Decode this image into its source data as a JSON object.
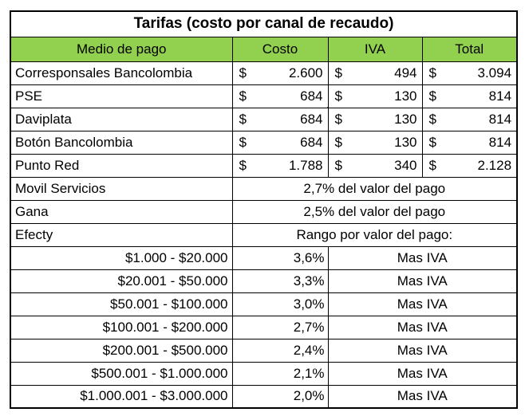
{
  "title": "Tarifas (costo por canal de recaudo)",
  "currency_symbol": "$",
  "columns": [
    "Medio de pago",
    "Costo",
    "IVA",
    "Total"
  ],
  "currency_rows": [
    {
      "medio": "Corresponsales Bancolombia",
      "costo": "2.600",
      "iva": "494",
      "total": "3.094"
    },
    {
      "medio": "PSE",
      "costo": "684",
      "iva": "130",
      "total": "814",
      "selected_column": "costo"
    },
    {
      "medio": "Daviplata",
      "costo": "684",
      "iva": "130",
      "total": "814"
    },
    {
      "medio": "Botón Bancolombia",
      "costo": "684",
      "iva": "130",
      "total": "814"
    },
    {
      "medio": "Punto Red",
      "costo": "1.788",
      "iva": "340",
      "total": "2.128"
    }
  ],
  "merged_rows": [
    {
      "medio": "Movil Servicios",
      "value": "2,7% del valor del pago"
    },
    {
      "medio": "Gana",
      "value": "2,5% del valor del pago"
    },
    {
      "medio": "Efecty",
      "value": "Rango por valor del pago:"
    }
  ],
  "range_rows": [
    {
      "range": "$1.000 - $20.000",
      "pct": "3,6%",
      "note": "Mas IVA"
    },
    {
      "range": "$20.001 - $50.000",
      "pct": "3,3%",
      "note": "Mas IVA"
    },
    {
      "range": "$50.001 - $100.000",
      "pct": "3,0%",
      "note": "Mas IVA"
    },
    {
      "range": "$100.001 - $200.000",
      "pct": "2,7%",
      "note": "Mas IVA"
    },
    {
      "range": "$200.001 - $500.000",
      "pct": "2,4%",
      "note": "Mas IVA"
    },
    {
      "range": "$500.001 - $1.000.000",
      "pct": "2,1%",
      "note": "Mas IVA"
    },
    {
      "range": "$1.000.001 - $3.000.000",
      "pct": "2,0%",
      "note": "Mas IVA"
    }
  ],
  "colors": {
    "header_green": "#92D050",
    "selection_green": "#217346",
    "grid_black": "#000000",
    "background": "#FFFFFF"
  },
  "selection": {
    "row": "PSE",
    "column": "Costo"
  }
}
